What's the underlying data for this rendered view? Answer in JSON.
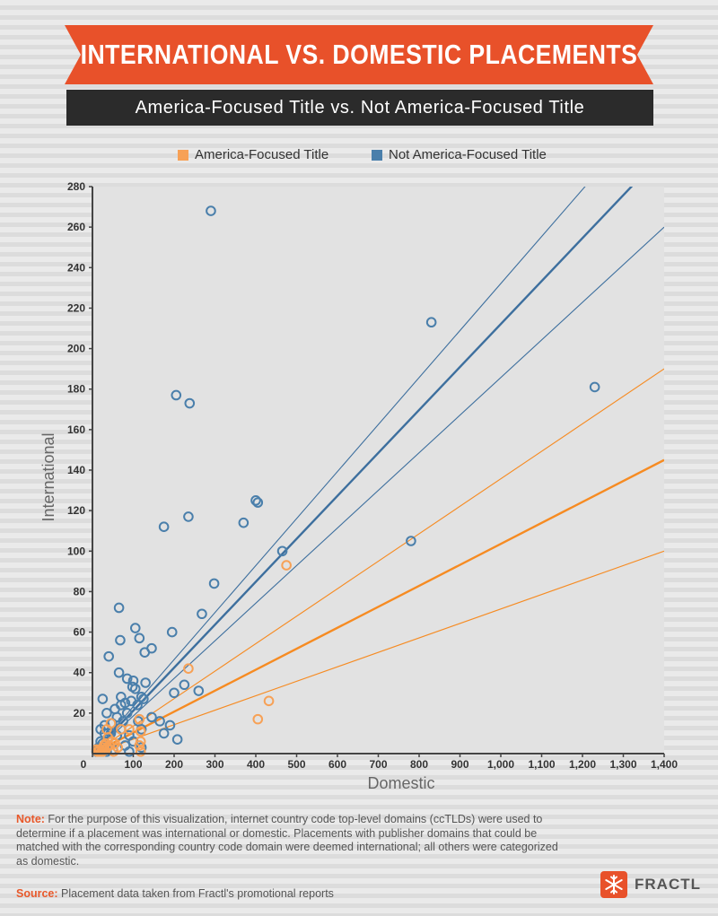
{
  "header": {
    "title": "INTERNATIONAL VS. DOMESTIC PLACEMENTS",
    "subtitle": "America-Focused Title vs. Not America-Focused Title"
  },
  "colors": {
    "banner": "#e8512a",
    "america": "#f7a156",
    "not_america": "#4a7fab",
    "america_line": "#f68b22",
    "not_america_line": "#3d6f9e",
    "note_highlight": "#e8582a"
  },
  "notes": {
    "note_label": "Note:",
    "note_text": " For the purpose of this visualization, internet country code top-level domains (ccTLDs) were used to determine if a placement was international or domestic. Placements with publisher domains that could be matched with the corresponding country code domain were deemed international; all others were categorized as domestic.",
    "source_label": "Source:",
    "source_text": " Placement data taken from Fractl's promotional reports"
  },
  "brand": {
    "name": "FRACTL",
    "icon": "snowflake-icon"
  },
  "chart_data": {
    "type": "scatter",
    "xlabel": "Domestic",
    "ylabel": "International",
    "xlim": [
      0,
      1400
    ],
    "ylim": [
      0,
      280
    ],
    "grid": false,
    "legend_position": "top-center",
    "x_ticks": [
      0,
      100,
      200,
      300,
      400,
      500,
      600,
      700,
      800,
      900,
      1000,
      1100,
      1200,
      1300,
      1400
    ],
    "x_tick_labels": [
      "0",
      "100",
      "200",
      "300",
      "400",
      "500",
      "600",
      "700",
      "800",
      "900",
      "1,000",
      "1,100",
      "1,200",
      "1,300",
      "1,400"
    ],
    "y_ticks": [
      20,
      40,
      60,
      80,
      100,
      120,
      140,
      160,
      180,
      200,
      220,
      240,
      260,
      280
    ],
    "y_tick_labels": [
      "20",
      "40",
      "60",
      "80",
      "100",
      "120",
      "140",
      "160",
      "180",
      "200",
      "220",
      "240",
      "260",
      "280"
    ],
    "series": [
      {
        "name": "America-Focused Title",
        "color": "#f7a156",
        "points": [
          [
            475,
            93
          ],
          [
            235,
            42
          ],
          [
            432,
            26
          ],
          [
            405,
            17
          ],
          [
            115,
            17
          ],
          [
            118,
            11
          ],
          [
            118,
            6
          ],
          [
            115,
            4
          ],
          [
            118,
            1
          ],
          [
            55,
            5
          ],
          [
            62,
            3
          ],
          [
            48,
            6
          ],
          [
            42,
            4
          ],
          [
            36,
            3
          ],
          [
            30,
            2
          ],
          [
            26,
            3
          ],
          [
            22,
            1
          ],
          [
            18,
            2
          ],
          [
            15,
            1
          ],
          [
            38,
            8
          ],
          [
            32,
            5
          ],
          [
            28,
            4
          ],
          [
            45,
            15
          ],
          [
            35,
            12
          ],
          [
            70,
            12
          ],
          [
            90,
            12
          ],
          [
            25,
            1
          ],
          [
            12,
            1
          ],
          [
            10,
            2
          ],
          [
            52,
            1
          ]
        ]
      },
      {
        "name": "Not America-Focused Title",
        "color": "#4a7fab",
        "points": [
          [
            290,
            268
          ],
          [
            830,
            213
          ],
          [
            1230,
            181
          ],
          [
            205,
            177
          ],
          [
            238,
            173
          ],
          [
            400,
            125
          ],
          [
            405,
            124
          ],
          [
            235,
            117
          ],
          [
            175,
            112
          ],
          [
            370,
            114
          ],
          [
            465,
            100
          ],
          [
            780,
            105
          ],
          [
            298,
            84
          ],
          [
            268,
            69
          ],
          [
            65,
            72
          ],
          [
            105,
            62
          ],
          [
            195,
            60
          ],
          [
            68,
            56
          ],
          [
            115,
            57
          ],
          [
            128,
            50
          ],
          [
            145,
            52
          ],
          [
            40,
            48
          ],
          [
            65,
            40
          ],
          [
            85,
            37
          ],
          [
            100,
            36
          ],
          [
            130,
            35
          ],
          [
            225,
            34
          ],
          [
            98,
            33
          ],
          [
            105,
            32
          ],
          [
            200,
            30
          ],
          [
            260,
            31
          ],
          [
            25,
            27
          ],
          [
            70,
            28
          ],
          [
            120,
            28
          ],
          [
            125,
            27
          ],
          [
            95,
            26
          ],
          [
            80,
            25
          ],
          [
            70,
            24
          ],
          [
            110,
            24
          ],
          [
            55,
            22
          ],
          [
            35,
            20
          ],
          [
            85,
            20
          ],
          [
            145,
            18
          ],
          [
            165,
            16
          ],
          [
            112,
            16
          ],
          [
            30,
            14
          ],
          [
            48,
            15
          ],
          [
            190,
            14
          ],
          [
            120,
            12
          ],
          [
            70,
            12
          ],
          [
            175,
            10
          ],
          [
            90,
            9
          ],
          [
            208,
            7
          ],
          [
            60,
            9
          ],
          [
            40,
            8
          ],
          [
            30,
            10
          ],
          [
            20,
            6
          ],
          [
            100,
            6
          ],
          [
            80,
            4
          ],
          [
            15,
            3
          ],
          [
            25,
            5
          ],
          [
            10,
            1
          ],
          [
            50,
            2
          ],
          [
            90,
            1
          ],
          [
            120,
            3
          ],
          [
            35,
            1
          ],
          [
            20,
            12
          ],
          [
            45,
            10
          ],
          [
            60,
            18
          ],
          [
            75,
            16
          ]
        ]
      }
    ],
    "trendlines": [
      {
        "series": "Not America-Focused Title",
        "style": "fit",
        "from": [
          0,
          0
        ],
        "to": [
          1400,
          297
        ]
      },
      {
        "series": "Not America-Focused Title",
        "style": "upper",
        "from": [
          0,
          0
        ],
        "to": [
          1400,
          325
        ]
      },
      {
        "series": "Not America-Focused Title",
        "style": "lower",
        "from": [
          0,
          0
        ],
        "to": [
          1400,
          260
        ]
      },
      {
        "series": "America-Focused Title",
        "style": "fit",
        "from": [
          0,
          0
        ],
        "to": [
          1400,
          145
        ]
      },
      {
        "series": "America-Focused Title",
        "style": "upper",
        "from": [
          0,
          0
        ],
        "to": [
          1400,
          190
        ]
      },
      {
        "series": "America-Focused Title",
        "style": "lower",
        "from": [
          0,
          0
        ],
        "to": [
          1400,
          100
        ]
      }
    ]
  }
}
